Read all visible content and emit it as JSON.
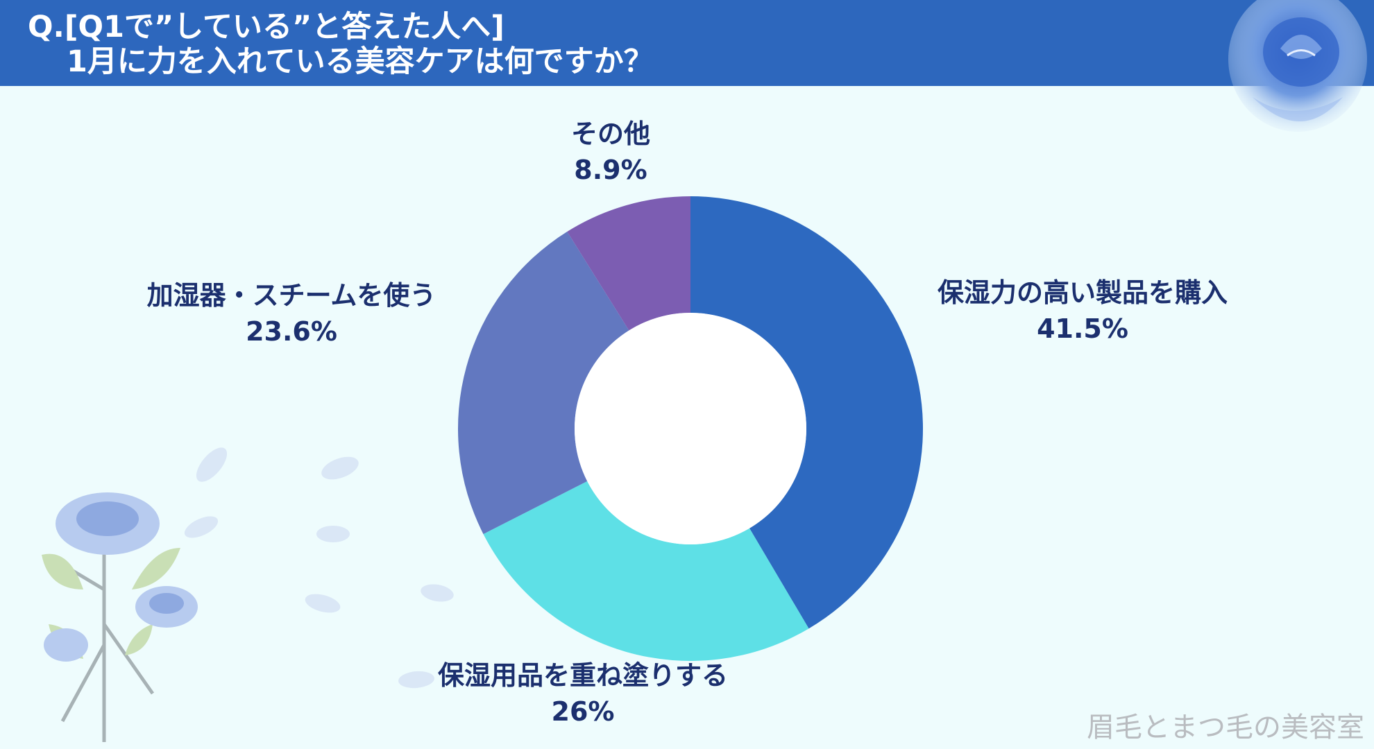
{
  "header": {
    "line1": "Q.[Q1で”している”と答えた人へ]",
    "line2": "1月に力を入れている美容ケアは何ですか？",
    "color": "#2d67bd"
  },
  "chart_data": {
    "type": "pie",
    "donut": true,
    "categories": [
      "保湿力の高い製品を購入",
      "保湿用品を重ね塗りする",
      "加湿器・スチームを使う",
      "その他"
    ],
    "values": [
      41.5,
      26,
      23.6,
      8.9
    ],
    "value_labels": [
      "41.5%",
      "26%",
      "23.6%",
      "8.9%"
    ],
    "colors": [
      "#2d69c0",
      "#5ee0e6",
      "#6278c0",
      "#7c5db2"
    ],
    "direction": "clockwise from top"
  },
  "watermark": "眉毛とまつ毛の美容室",
  "decorations": {
    "top_right": "blue-rose-icon",
    "bottom_left": "blue-rose-bouquet-icon",
    "petals": "petal-icon"
  }
}
